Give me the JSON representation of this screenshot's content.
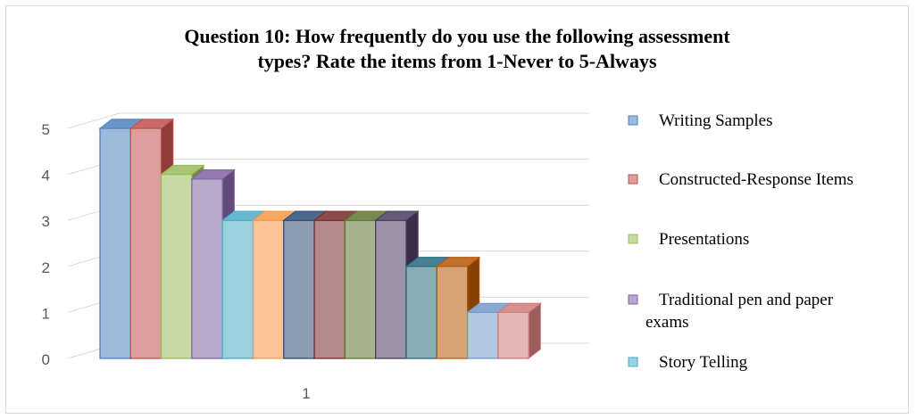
{
  "chart_data": {
    "type": "bar",
    "title_line1": "Question 10: How frequently do you use the following assessment",
    "title_line2": "types? Rate the items from 1-Never to 5-Always",
    "categories": [
      "1"
    ],
    "ylim": [
      0,
      5
    ],
    "yticks": [
      "0",
      "1",
      "2",
      "3",
      "4",
      "5"
    ],
    "grid": true,
    "legend_position": "right",
    "series": [
      {
        "name": "Writing Samples",
        "values": [
          5
        ],
        "color": "#4f81bd"
      },
      {
        "name": "Constructed-Response Items",
        "values": [
          5
        ],
        "color": "#c0504d"
      },
      {
        "name": "Presentations",
        "values": [
          4
        ],
        "color": "#9bbb59"
      },
      {
        "name": "Traditional pen and paper exams",
        "values": [
          3.9
        ],
        "color": "#8064a2"
      },
      {
        "name": "Story Telling",
        "values": [
          3
        ],
        "color": "#4bacc6"
      },
      {
        "values": [
          3
        ],
        "color": "#f79646"
      },
      {
        "values": [
          3
        ],
        "color": "#2c4d75"
      },
      {
        "values": [
          3
        ],
        "color": "#772c2a"
      },
      {
        "values": [
          3
        ],
        "color": "#5f7530"
      },
      {
        "values": [
          3
        ],
        "color": "#4d3b62"
      },
      {
        "values": [
          2
        ],
        "color": "#276a7c"
      },
      {
        "values": [
          2
        ],
        "color": "#b65708"
      },
      {
        "values": [
          1
        ],
        "color": "#729aca"
      },
      {
        "values": [
          1
        ],
        "color": "#d07c7a"
      }
    ]
  }
}
